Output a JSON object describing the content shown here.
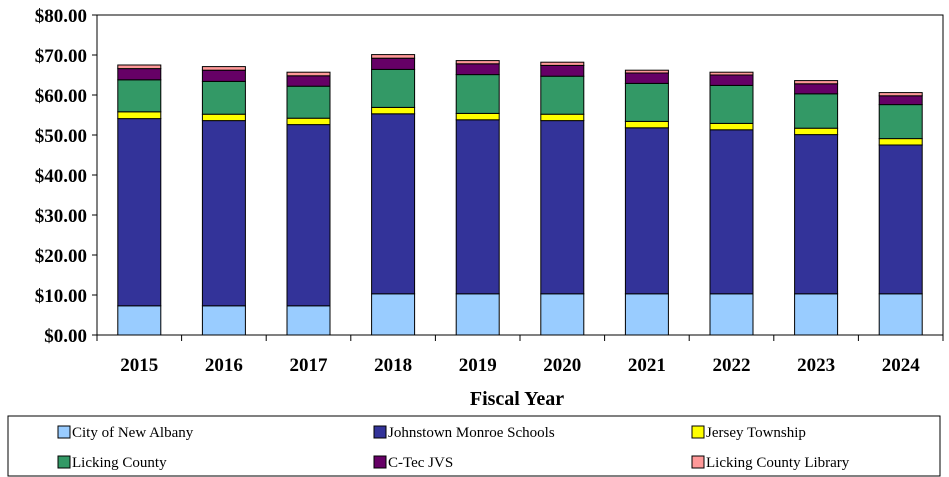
{
  "chart_data": {
    "type": "bar",
    "stacked": true,
    "title": "",
    "xlabel": "Fiscal Year",
    "ylabel": "",
    "ylim": [
      0,
      80
    ],
    "ytick_labels": [
      "$0.00",
      "$10.00",
      "$20.00",
      "$30.00",
      "$40.00",
      "$50.00",
      "$60.00",
      "$70.00",
      "$80.00"
    ],
    "categories": [
      "2015",
      "2016",
      "2017",
      "2018",
      "2019",
      "2020",
      "2021",
      "2022",
      "2023",
      "2024"
    ],
    "legend_position": "bottom",
    "series": [
      {
        "name": "City of New Albany",
        "color": "#99CCFF",
        "values": [
          7.3,
          7.3,
          7.3,
          10.3,
          10.3,
          10.3,
          10.3,
          10.3,
          10.3,
          10.3
        ]
      },
      {
        "name": "Johnstown Monroe Schools",
        "color": "#333399",
        "values": [
          46.8,
          46.3,
          45.3,
          45.0,
          43.5,
          43.3,
          41.5,
          41.0,
          39.8,
          37.2
        ]
      },
      {
        "name": "Jersey Township",
        "color": "#FFFF00",
        "values": [
          1.7,
          1.6,
          1.6,
          1.6,
          1.6,
          1.6,
          1.6,
          1.6,
          1.6,
          1.6
        ]
      },
      {
        "name": "Licking County",
        "color": "#339966",
        "values": [
          8.0,
          8.2,
          8.0,
          9.5,
          9.7,
          9.5,
          9.5,
          9.5,
          8.6,
          8.5
        ]
      },
      {
        "name": "C-Tec JVS",
        "color": "#660066",
        "values": [
          2.8,
          2.8,
          2.6,
          2.8,
          2.7,
          2.7,
          2.6,
          2.6,
          2.5,
          2.2
        ]
      },
      {
        "name": "Licking County Library",
        "color": "#FF9999",
        "values": [
          0.9,
          0.9,
          0.9,
          0.9,
          0.8,
          0.8,
          0.7,
          0.7,
          0.8,
          0.8
        ]
      }
    ]
  }
}
